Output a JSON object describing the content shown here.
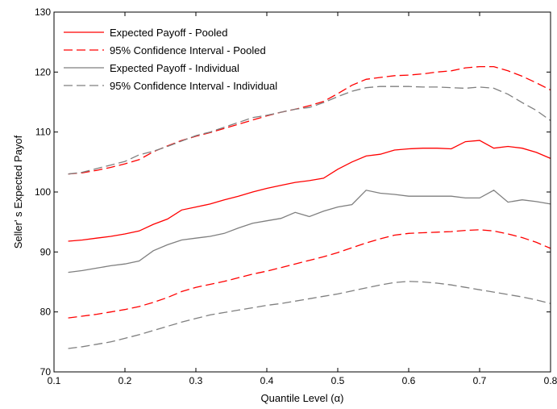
{
  "chart_data": {
    "type": "line",
    "title": "",
    "xlabel": "Quantile Level (α)",
    "ylabel": "Seller' s Expected Payof",
    "xlim": [
      0.1,
      0.8
    ],
    "ylim": [
      70,
      130
    ],
    "xticks": [
      0.1,
      0.2,
      0.3,
      0.4,
      0.5,
      0.6,
      0.7,
      0.8
    ],
    "xtick_labels": [
      "0.1",
      "0.2",
      "0.3",
      "0.4",
      "0.5",
      "0.6",
      "0.7",
      "0.8"
    ],
    "yticks": [
      70,
      80,
      90,
      100,
      110,
      120,
      130
    ],
    "ytick_labels": [
      "70",
      "80",
      "90",
      "100",
      "110",
      "120",
      "130"
    ],
    "grid": false,
    "legend_position": "top-left",
    "x": [
      0.12,
      0.14,
      0.16,
      0.18,
      0.2,
      0.22,
      0.24,
      0.26,
      0.28,
      0.3,
      0.32,
      0.34,
      0.36,
      0.38,
      0.4,
      0.42,
      0.44,
      0.46,
      0.48,
      0.5,
      0.52,
      0.54,
      0.56,
      0.58,
      0.6,
      0.62,
      0.64,
      0.66,
      0.68,
      0.7,
      0.72,
      0.74,
      0.76,
      0.78,
      0.8
    ],
    "series": [
      {
        "name": "Expected Payoff - Pooled",
        "color": "#ff0000",
        "dash": "solid",
        "values": [
          91.8,
          92.0,
          92.3,
          92.6,
          93.0,
          93.5,
          94.6,
          95.5,
          97.0,
          97.5,
          98.0,
          98.7,
          99.3,
          100.0,
          100.6,
          101.1,
          101.6,
          101.9,
          102.3,
          103.8,
          105.0,
          106.0,
          106.3,
          107.0,
          107.2,
          107.3,
          107.3,
          107.2,
          108.4,
          108.6,
          107.3,
          107.6,
          107.3,
          106.6,
          105.6
        ]
      },
      {
        "name": "95% Confidence Interval - Pooled",
        "color": "#ff0000",
        "dash": "dashed",
        "values": [
          103.0,
          103.2,
          103.6,
          104.1,
          104.7,
          105.4,
          106.7,
          107.7,
          108.6,
          109.3,
          109.9,
          110.6,
          111.3,
          112.0,
          112.7,
          113.3,
          113.8,
          114.4,
          115.1,
          116.4,
          117.8,
          118.8,
          119.1,
          119.4,
          119.5,
          119.7,
          120.0,
          120.2,
          120.7,
          120.9,
          120.9,
          120.2,
          119.3,
          118.2,
          117.0
        ]
      },
      {
        "name": "Expected Payoff - Individual",
        "color": "#7f7f7f",
        "dash": "solid",
        "values": [
          86.6,
          86.9,
          87.3,
          87.7,
          88.0,
          88.5,
          90.2,
          91.2,
          92.0,
          92.3,
          92.6,
          93.1,
          94.0,
          94.8,
          95.2,
          95.6,
          96.6,
          95.9,
          96.8,
          97.5,
          97.9,
          100.3,
          99.8,
          99.6,
          99.3,
          99.3,
          99.3,
          99.3,
          99.0,
          99.0,
          100.3,
          98.3,
          98.7,
          98.4,
          98.0
        ]
      },
      {
        "name": "95% Confidence Interval - Individual",
        "color": "#7f7f7f",
        "dash": "dashed",
        "values": [
          103.0,
          103.3,
          103.9,
          104.5,
          105.1,
          106.2,
          106.8,
          107.6,
          108.5,
          109.4,
          110.0,
          110.8,
          111.6,
          112.4,
          112.8,
          113.3,
          113.8,
          114.1,
          114.9,
          115.9,
          116.8,
          117.4,
          117.6,
          117.6,
          117.6,
          117.5,
          117.5,
          117.4,
          117.3,
          117.5,
          117.3,
          116.3,
          114.9,
          113.6,
          111.9
        ]
      },
      {
        "name": "",
        "color": "#ff0000",
        "dash": "dashed",
        "values": [
          79.0,
          79.3,
          79.6,
          80.0,
          80.4,
          80.9,
          81.6,
          82.4,
          83.4,
          84.1,
          84.6,
          85.1,
          85.7,
          86.3,
          86.8,
          87.4,
          88.0,
          88.6,
          89.2,
          89.9,
          90.7,
          91.5,
          92.2,
          92.8,
          93.1,
          93.2,
          93.3,
          93.4,
          93.6,
          93.7,
          93.5,
          93.0,
          92.4,
          91.6,
          90.6
        ]
      },
      {
        "name": "",
        "color": "#7f7f7f",
        "dash": "dashed",
        "values": [
          73.9,
          74.2,
          74.6,
          75.0,
          75.6,
          76.2,
          76.9,
          77.6,
          78.3,
          78.9,
          79.5,
          79.9,
          80.3,
          80.7,
          81.1,
          81.4,
          81.8,
          82.2,
          82.6,
          83.0,
          83.5,
          84.0,
          84.5,
          84.9,
          85.1,
          85.0,
          84.8,
          84.5,
          84.1,
          83.7,
          83.3,
          82.9,
          82.5,
          82.0,
          81.4
        ]
      }
    ]
  }
}
